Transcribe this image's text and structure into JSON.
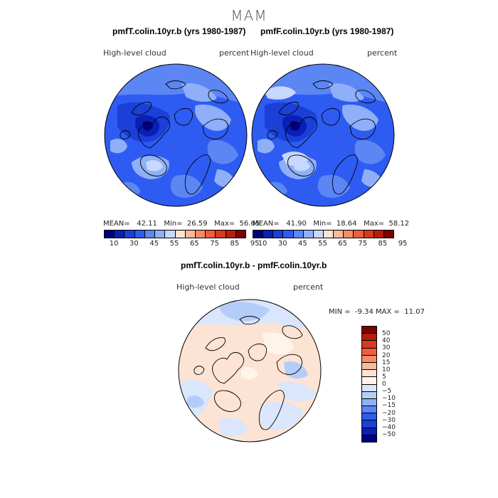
{
  "figure": {
    "season": "MAM"
  },
  "panels": [
    {
      "title": "pmfT.colin.10yr.b (yrs 1980-1987)",
      "variable": "High-level cloud",
      "units": "percent",
      "stats": {
        "mean": "42.11",
        "min": "26.59",
        "max": "56.65"
      },
      "labels": {
        "mean": "MEAN=",
        "min": "Min=",
        "max": "Max="
      }
    },
    {
      "title": "pmfF.colin.10yr.b (yrs 1980-1987)",
      "variable": "High-level cloud",
      "units": "percent",
      "stats": {
        "mean": "41.90",
        "min": "18.64",
        "max": "58.12"
      },
      "labels": {
        "mean": "MEAN=",
        "min": "Min=",
        "max": "Max="
      }
    }
  ],
  "difference": {
    "title": "pmfT.colin.10yr.b - pmfF.colin.10yr.b",
    "variable": "High-level cloud",
    "units": "percent",
    "min_label": "MIN =",
    "min": "-9.34",
    "max_label": "MAX =",
    "max": "11.07"
  },
  "colorbar": {
    "labels": [
      "10",
      "30",
      "45",
      "55",
      "65",
      "75",
      "85",
      "95"
    ],
    "colors": [
      "#000080",
      "#0a1fb4",
      "#1a40d8",
      "#2e5cf2",
      "#5b86f4",
      "#8fb0f8",
      "#c6d8fb",
      "#fde3d3",
      "#f9b99b",
      "#f48b68",
      "#ee5e3d",
      "#d83a1e",
      "#b51e0e",
      "#7f0000"
    ]
  },
  "diff_colorbar": {
    "labels": [
      "50",
      "40",
      "30",
      "20",
      "15",
      "10",
      "5",
      "0",
      "−5",
      "−10",
      "−15",
      "−20",
      "−30",
      "−40",
      "−50"
    ],
    "colors": [
      "#7f0000",
      "#b51e0e",
      "#d83a1e",
      "#ee5e3d",
      "#f48b68",
      "#f9b99b",
      "#fde3d3",
      "#fff4ea",
      "#dae6fb",
      "#b4cdf8",
      "#8fb0f8",
      "#5b86f4",
      "#2e5cf2",
      "#1a40d8",
      "#0a1fb4",
      "#000080"
    ]
  },
  "map_colors": {
    "deep": "#000080",
    "dark": "#0a1fb4",
    "mid": "#1a40d8",
    "base": "#2e5cf2",
    "light": "#5b86f4",
    "lighter": "#8fb0f8",
    "pale": "#c6d8fb",
    "diff_pos": "#fde3d3",
    "diff_zero": "#fff4ea",
    "diff_neg": "#dae6fb",
    "diff_neg2": "#b4cdf8",
    "coast": "#000000"
  }
}
